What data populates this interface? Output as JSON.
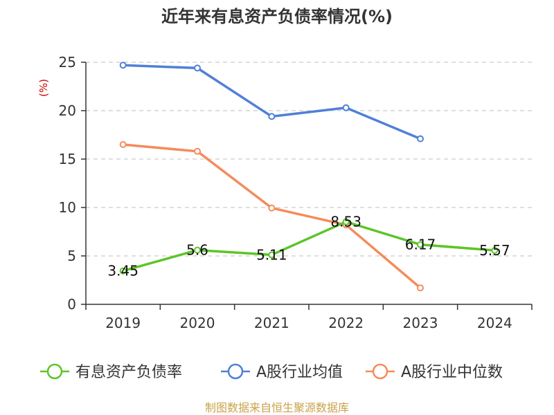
{
  "chart_data": {
    "type": "line",
    "title": "近年来有息资产负债率情况(%)",
    "ylabel": "(%)",
    "xlabel": "",
    "categories": [
      "2019",
      "2020",
      "2021",
      "2022",
      "2023",
      "2024"
    ],
    "ylim": [
      0,
      25
    ],
    "yticks": [
      "0",
      "5",
      "10",
      "15",
      "20",
      "25"
    ],
    "grid": true,
    "legend_position": "bottom",
    "series": [
      {
        "name": "有息资产负债率",
        "color": "#5ec429",
        "values": [
          3.45,
          5.6,
          5.11,
          8.53,
          6.17,
          5.57
        ],
        "labels": [
          "3.45",
          "5.6",
          "5.11",
          "8.53",
          "6.17",
          "5.57"
        ]
      },
      {
        "name": "A股行业均值",
        "color": "#4f80d8",
        "values": [
          24.7,
          24.4,
          19.4,
          20.3,
          17.1,
          null
        ]
      },
      {
        "name": "A股行业中位数",
        "color": "#f58b5b",
        "values": [
          16.5,
          15.8,
          9.95,
          8.2,
          1.7,
          null
        ]
      }
    ]
  },
  "source_text": "制图数据来自恒生聚源数据库",
  "colors": {
    "unit_label": "#cc0000",
    "source_text": "#c8a24a",
    "axis": "#333333",
    "grid": "#cccccc"
  }
}
